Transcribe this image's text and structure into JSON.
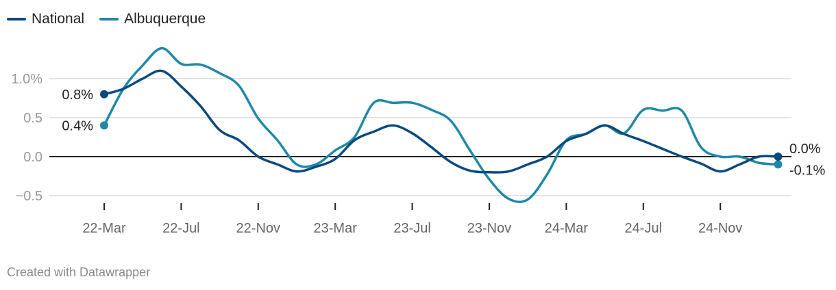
{
  "legend": [
    {
      "name": "National",
      "color": "#0b4a7e"
    },
    {
      "name": "Albuquerque",
      "color": "#1f88a8"
    }
  ],
  "footer": "Created with Datawrapper",
  "chart_data": {
    "type": "line",
    "title": "",
    "xlabel": "",
    "ylabel": "",
    "ylim": [
      -0.6,
      1.45
    ],
    "y_ticks": [
      1.0,
      0.5,
      0.0,
      -0.5
    ],
    "y_tick_labels": [
      "1.0%",
      "0.5",
      "0.0",
      "−0.5"
    ],
    "x_ticks": [
      "22-Mar",
      "22-Jul",
      "22-Nov",
      "23-Mar",
      "23-Jul",
      "23-Nov",
      "24-Mar",
      "24-Jul",
      "24-Nov"
    ],
    "x_tick_every_months": 4,
    "x_start": "2022-03",
    "x_end": "2025-02",
    "grid": true,
    "legend_position": "top-left",
    "series": [
      {
        "name": "National",
        "color": "#0b4a7e",
        "start_label": "0.8%",
        "end_label": "0.0%",
        "values": [
          0.8,
          0.87,
          1.0,
          1.1,
          0.9,
          0.65,
          0.34,
          0.21,
          0.0,
          -0.1,
          -0.19,
          -0.13,
          -0.03,
          0.21,
          0.32,
          0.4,
          0.3,
          0.12,
          -0.07,
          -0.18,
          -0.2,
          -0.19,
          -0.1,
          0.0,
          0.2,
          0.29,
          0.4,
          0.29,
          0.2,
          0.1,
          0.0,
          -0.09,
          -0.19,
          -0.1,
          0.0,
          0.0
        ]
      },
      {
        "name": "Albuquerque",
        "color": "#1f88a8",
        "start_label": "0.4%",
        "end_label": "-0.1%",
        "values": [
          0.4,
          0.87,
          1.17,
          1.39,
          1.19,
          1.18,
          1.07,
          0.91,
          0.49,
          0.21,
          -0.1,
          -0.1,
          0.08,
          0.25,
          0.69,
          0.69,
          0.69,
          0.6,
          0.46,
          0.08,
          -0.29,
          -0.54,
          -0.55,
          -0.23,
          0.21,
          0.29,
          0.4,
          0.3,
          0.6,
          0.59,
          0.59,
          0.12,
          0.0,
          0.0,
          -0.08,
          -0.1
        ]
      }
    ]
  }
}
